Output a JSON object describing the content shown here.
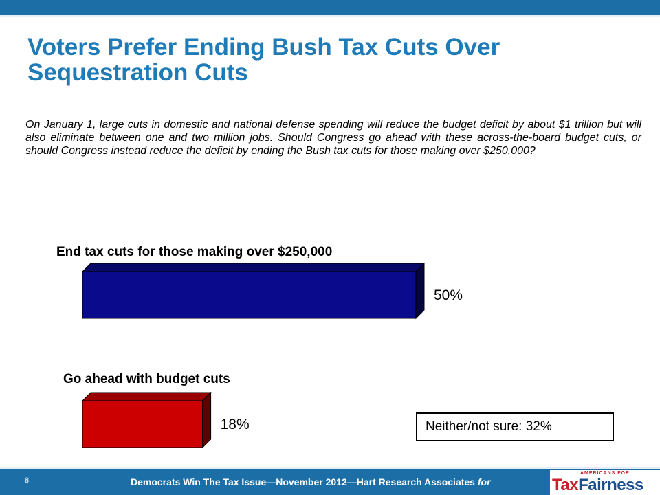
{
  "title": "Voters Prefer Ending Bush Tax Cuts Over Sequestration Cuts",
  "question": "On January 1, large cuts in domestic and national defense spending will reduce the budget deficit by about $1 trillion but will also eliminate between one and two million jobs.  Should Congress go ahead with these across-the-board budget cuts, or should Congress instead reduce the deficit by ending the Bush tax cuts for those making over $250,000?",
  "chart_data": {
    "type": "bar",
    "orientation": "horizontal",
    "categories": [
      "End tax cuts for those making over $250,000",
      "Go ahead with budget cuts"
    ],
    "values": [
      50,
      18
    ],
    "value_labels": [
      "50%",
      "18%"
    ],
    "colors": [
      "#0a0a8c",
      "#cc0000"
    ],
    "xlim": [
      0,
      50
    ],
    "grid": false,
    "legend": "none"
  },
  "note": "Neither/not sure: 32%",
  "footer": {
    "page_number": "8",
    "text": "Democrats Win The Tax Issue—November 2012—Hart Research Associates",
    "for": "for"
  },
  "logo": {
    "small": "AMERICANS FOR",
    "part1": "Tax",
    "part2": "Fairness"
  }
}
